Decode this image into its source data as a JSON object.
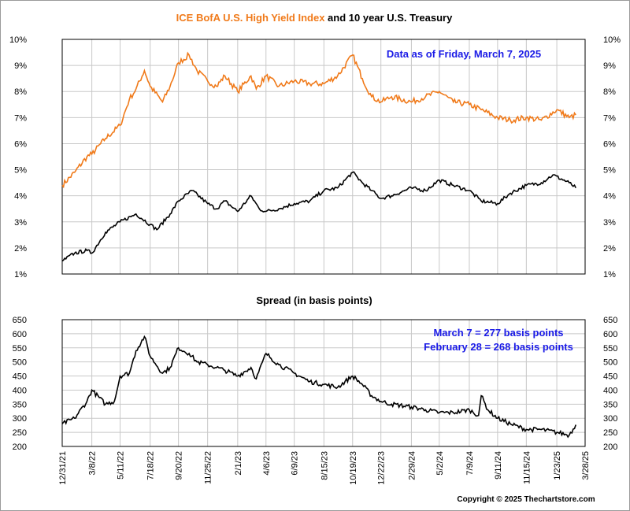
{
  "colors": {
    "high_yield": "#f07a1a",
    "treasury": "#000000",
    "spread": "#000000",
    "annotation": "#1a1ae6",
    "grid": "#c8c8c8"
  },
  "top_title": {
    "part1": "ICE BofA U.S. High Yield Index",
    "part2": " and 10 year U.S. Treasury"
  },
  "top_note": "Data as of Friday, March 7, 2025",
  "bottom_title": "Spread (in basis points)",
  "bottom_notes": [
    "March 7 = 277 basis points",
    "February 28 = 268 basis points"
  ],
  "copyright": "Copyright © 2025 Thechartstore.com",
  "chart_data": [
    {
      "type": "line",
      "title": "ICE BofA U.S. High Yield Index and 10 year U.S. Treasury",
      "ylim": [
        1,
        10
      ],
      "y_ticks": [
        "1%",
        "2%",
        "3%",
        "4%",
        "5%",
        "6%",
        "7%",
        "8%",
        "9%",
        "10%"
      ],
      "x_range": [
        "2021-12-31",
        "2025-03-28"
      ],
      "grid": true,
      "series": [
        {
          "name": "ICE BofA U.S. High Yield Index",
          "x": [
            "2021-12-31",
            "2022-01-28",
            "2022-02-25",
            "2022-03-08",
            "2022-04-08",
            "2022-05-11",
            "2022-06-01",
            "2022-06-16",
            "2022-07-05",
            "2022-07-18",
            "2022-08-15",
            "2022-09-01",
            "2022-09-20",
            "2022-10-14",
            "2022-11-01",
            "2022-11-25",
            "2022-12-15",
            "2023-01-03",
            "2023-02-01",
            "2023-03-03",
            "2023-03-15",
            "2023-04-06",
            "2023-05-05",
            "2023-06-09",
            "2023-07-14",
            "2023-08-15",
            "2023-09-15",
            "2023-10-19",
            "2023-11-10",
            "2023-12-01",
            "2023-12-22",
            "2024-01-15",
            "2024-02-29",
            "2024-04-01",
            "2024-05-02",
            "2024-06-03",
            "2024-07-09",
            "2024-08-05",
            "2024-09-11",
            "2024-10-10",
            "2024-11-15",
            "2024-12-19",
            "2025-01-23",
            "2025-02-20",
            "2025-03-07"
          ],
          "values": [
            4.4,
            4.9,
            5.5,
            5.6,
            6.2,
            6.7,
            7.7,
            8.1,
            8.8,
            8.2,
            7.6,
            8.2,
            9.1,
            9.4,
            8.8,
            8.4,
            8.2,
            8.6,
            8.0,
            8.6,
            8.1,
            8.6,
            8.2,
            8.4,
            8.3,
            8.3,
            8.6,
            9.4,
            8.5,
            7.8,
            7.6,
            7.8,
            7.6,
            7.8,
            8.0,
            7.6,
            7.5,
            7.3,
            7.0,
            6.9,
            7.0,
            6.9,
            7.3,
            7.0,
            7.1
          ]
        },
        {
          "name": "10 year U.S. Treasury",
          "x": [
            "2021-12-31",
            "2022-01-28",
            "2022-02-25",
            "2022-03-08",
            "2022-04-08",
            "2022-05-11",
            "2022-06-16",
            "2022-07-18",
            "2022-08-02",
            "2022-09-01",
            "2022-09-20",
            "2022-10-21",
            "2022-11-25",
            "2022-12-15",
            "2023-01-03",
            "2023-02-01",
            "2023-03-03",
            "2023-03-22",
            "2023-04-06",
            "2023-05-05",
            "2023-06-09",
            "2023-07-14",
            "2023-08-15",
            "2023-09-15",
            "2023-10-19",
            "2023-11-10",
            "2023-12-01",
            "2023-12-22",
            "2024-01-15",
            "2024-02-29",
            "2024-04-01",
            "2024-05-02",
            "2024-06-03",
            "2024-07-09",
            "2024-08-05",
            "2024-09-11",
            "2024-10-10",
            "2024-11-15",
            "2024-12-19",
            "2025-01-14",
            "2025-02-20",
            "2025-03-07"
          ],
          "values": [
            1.5,
            1.8,
            1.9,
            1.8,
            2.6,
            3.0,
            3.3,
            2.9,
            2.7,
            3.3,
            3.8,
            4.2,
            3.7,
            3.5,
            3.8,
            3.4,
            4.0,
            3.5,
            3.4,
            3.5,
            3.7,
            3.8,
            4.2,
            4.3,
            4.9,
            4.5,
            4.2,
            3.9,
            4.0,
            4.3,
            4.2,
            4.6,
            4.4,
            4.2,
            3.8,
            3.7,
            4.1,
            4.4,
            4.5,
            4.8,
            4.5,
            4.3
          ]
        }
      ]
    },
    {
      "type": "line",
      "title": "Spread (in basis points)",
      "ylim": [
        200,
        650
      ],
      "y_ticks": [
        "200",
        "250",
        "300",
        "350",
        "400",
        "450",
        "500",
        "550",
        "600",
        "650"
      ],
      "x_range": [
        "2021-12-31",
        "2025-03-28"
      ],
      "x_ticks": [
        "12/31/21",
        "3/8/22",
        "5/11/22",
        "7/18/22",
        "9/20/22",
        "11/25/22",
        "2/1/23",
        "4/6/23",
        "6/9/23",
        "8/15/23",
        "10/19/23",
        "12/22/23",
        "2/29/24",
        "5/2/24",
        "7/9/24",
        "9/11/24",
        "11/15/24",
        "1/23/25",
        "3/28/25"
      ],
      "grid": true,
      "series": [
        {
          "name": "Spread",
          "x": [
            "2021-12-31",
            "2022-01-28",
            "2022-02-25",
            "2022-03-08",
            "2022-04-08",
            "2022-04-28",
            "2022-05-11",
            "2022-06-01",
            "2022-06-16",
            "2022-07-05",
            "2022-07-18",
            "2022-08-15",
            "2022-09-01",
            "2022-09-20",
            "2022-10-14",
            "2022-11-01",
            "2022-11-25",
            "2022-12-15",
            "2023-01-03",
            "2023-02-01",
            "2023-03-03",
            "2023-03-15",
            "2023-04-06",
            "2023-05-05",
            "2023-06-09",
            "2023-07-14",
            "2023-08-15",
            "2023-09-15",
            "2023-10-19",
            "2023-11-10",
            "2023-12-01",
            "2023-12-22",
            "2024-01-15",
            "2024-02-29",
            "2024-04-01",
            "2024-05-02",
            "2024-06-03",
            "2024-07-09",
            "2024-07-30",
            "2024-08-05",
            "2024-08-20",
            "2024-09-11",
            "2024-10-10",
            "2024-11-15",
            "2024-12-19",
            "2025-01-23",
            "2025-02-20",
            "2025-03-07"
          ],
          "values": [
            280,
            300,
            360,
            400,
            350,
            360,
            450,
            460,
            540,
            590,
            520,
            460,
            480,
            550,
            530,
            500,
            490,
            480,
            470,
            450,
            480,
            440,
            530,
            490,
            460,
            430,
            420,
            410,
            450,
            420,
            380,
            360,
            350,
            340,
            330,
            320,
            320,
            330,
            310,
            380,
            330,
            300,
            280,
            260,
            260,
            250,
            240,
            277
          ]
        }
      ]
    }
  ]
}
